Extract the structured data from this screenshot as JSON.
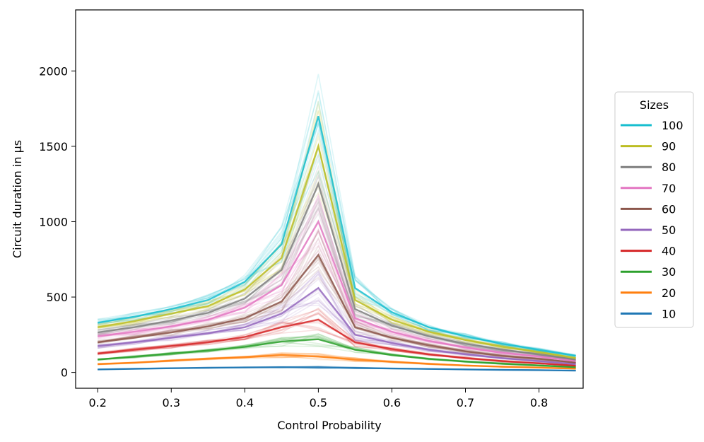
{
  "chart_data": {
    "type": "line",
    "title": "",
    "xlabel": "Control Probability",
    "ylabel": "Circuit duration in µs",
    "xlim": [
      0.17,
      0.86
    ],
    "ylim": [
      -105,
      2405
    ],
    "xticks": [
      0.2,
      0.3,
      0.4,
      0.5,
      0.6,
      0.7,
      0.8
    ],
    "xtick_labels": [
      "0.2",
      "0.3",
      "0.4",
      "0.5",
      "0.6",
      "0.7",
      "0.8"
    ],
    "yticks": [
      0,
      500,
      1000,
      1500,
      2000
    ],
    "ytick_labels": [
      "0",
      "500",
      "1000",
      "1500",
      "2000"
    ],
    "grid": false,
    "x": [
      0.2,
      0.25,
      0.3,
      0.35,
      0.4,
      0.45,
      0.5,
      0.55,
      0.6,
      0.65,
      0.7,
      0.75,
      0.8,
      0.85
    ],
    "legend": {
      "title": "Sizes",
      "placement": "outside-right",
      "entries": [
        "100",
        "90",
        "80",
        "70",
        "60",
        "50",
        "40",
        "30",
        "20",
        "10"
      ]
    },
    "series": [
      {
        "name": "100",
        "color": "#17becf",
        "values": [
          330,
          370,
          420,
          480,
          600,
          850,
          1700,
          560,
          400,
          300,
          240,
          190,
          150,
          110
        ]
      },
      {
        "name": "90",
        "color": "#bcbd22",
        "values": [
          300,
          340,
          390,
          440,
          550,
          760,
          1500,
          480,
          350,
          270,
          215,
          170,
          135,
          95
        ]
      },
      {
        "name": "80",
        "color": "#7f7f7f",
        "values": [
          265,
          300,
          345,
          395,
          490,
          680,
          1250,
          420,
          310,
          240,
          190,
          150,
          120,
          85
        ]
      },
      {
        "name": "70",
        "color": "#e377c2",
        "values": [
          240,
          270,
          305,
          350,
          430,
          580,
          1000,
          360,
          270,
          210,
          165,
          130,
          105,
          75
        ]
      },
      {
        "name": "60",
        "color": "#8c564b",
        "values": [
          200,
          230,
          265,
          305,
          360,
          470,
          780,
          300,
          230,
          180,
          140,
          110,
          90,
          65
        ]
      },
      {
        "name": "50",
        "color": "#9467bd",
        "values": [
          175,
          200,
          230,
          260,
          300,
          390,
          560,
          250,
          195,
          150,
          120,
          95,
          75,
          55
        ]
      },
      {
        "name": "40",
        "color": "#d62728",
        "values": [
          125,
          150,
          175,
          200,
          235,
          300,
          350,
          200,
          155,
          120,
          95,
          75,
          60,
          45
        ]
      },
      {
        "name": "30",
        "color": "#2ca02c",
        "values": [
          85,
          105,
          125,
          145,
          170,
          205,
          220,
          150,
          115,
          90,
          72,
          58,
          46,
          35
        ]
      },
      {
        "name": "20",
        "color": "#ff7f0e",
        "values": [
          55,
          65,
          78,
          90,
          100,
          115,
          105,
          85,
          70,
          57,
          46,
          38,
          32,
          25
        ]
      },
      {
        "name": "10",
        "color": "#1f77b4",
        "values": [
          20,
          24,
          28,
          31,
          33,
          35,
          34,
          30,
          26,
          23,
          20,
          17,
          15,
          12
        ]
      }
    ]
  }
}
